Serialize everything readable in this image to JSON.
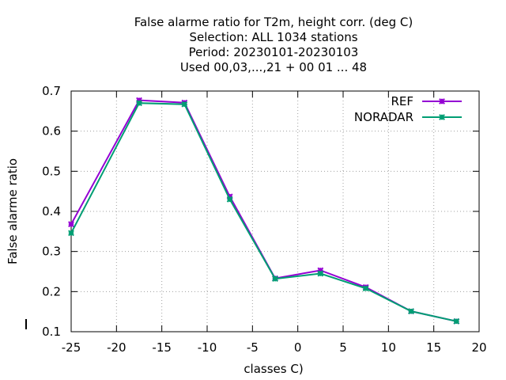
{
  "chart_data": {
    "type": "line",
    "title_lines": [
      "False alarme ratio  for T2m, height corr. (deg C)",
      "Selection: ALL   1034 stations",
      "Period: 20230101-20230103",
      "Used  00,03,...,21  + 00 01 ... 48"
    ],
    "xlabel": "classes C)",
    "ylabel": "False alarme ratio",
    "xlim": [
      -25,
      20
    ],
    "ylim": [
      0.1,
      0.7
    ],
    "xticks": [
      -25,
      -20,
      -15,
      -10,
      -5,
      0,
      5,
      10,
      15,
      20
    ],
    "yticks": [
      0.1,
      0.2,
      0.3,
      0.4,
      0.5,
      0.6,
      0.7
    ],
    "grid": true,
    "legend_position": "top-right",
    "series": [
      {
        "name": "REF",
        "color": "#9400d3",
        "x": [
          -25,
          -17.5,
          -12.5,
          -7.5,
          -2.5,
          2.5,
          7.5,
          12.5,
          17.5
        ],
        "y": [
          0.368,
          0.677,
          0.671,
          0.437,
          0.233,
          0.253,
          0.211,
          0.151,
          0.126
        ]
      },
      {
        "name": "NORADAR",
        "color": "#009e73",
        "x": [
          -25,
          -17.5,
          -12.5,
          -7.5,
          -2.5,
          2.5,
          7.5,
          12.5,
          17.5
        ],
        "y": [
          0.346,
          0.67,
          0.667,
          0.43,
          0.232,
          0.245,
          0.208,
          0.151,
          0.126
        ]
      }
    ]
  }
}
